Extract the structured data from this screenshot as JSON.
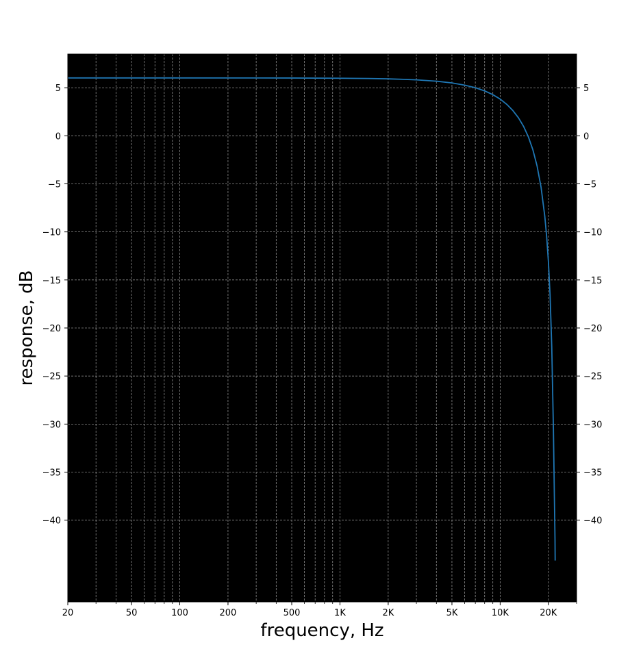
{
  "chart_data": {
    "type": "line",
    "title": "",
    "xlabel": "frequency, Hz",
    "ylabel": "response, dB",
    "xscale": "log",
    "xlim": [
      20,
      30000
    ],
    "ylim": [
      -48.5,
      8.5
    ],
    "grid": true,
    "background_color": "#000000",
    "grid_color": "#8c8c8c",
    "line_color": "#1f77b4",
    "xticks": [
      {
        "value": 20,
        "label": "20"
      },
      {
        "value": 50,
        "label": "50"
      },
      {
        "value": 100,
        "label": "100"
      },
      {
        "value": 200,
        "label": "200"
      },
      {
        "value": 500,
        "label": "500"
      },
      {
        "value": 1000,
        "label": "1K"
      },
      {
        "value": 2000,
        "label": "2K"
      },
      {
        "value": 5000,
        "label": "5K"
      },
      {
        "value": 10000,
        "label": "10K"
      },
      {
        "value": 20000,
        "label": "20K"
      }
    ],
    "yticks": [
      {
        "value": 5,
        "label": "5"
      },
      {
        "value": 0,
        "label": "0"
      },
      {
        "value": -5,
        "label": "−5"
      },
      {
        "value": -10,
        "label": "−10"
      },
      {
        "value": -15,
        "label": "−15"
      },
      {
        "value": -20,
        "label": "−20"
      },
      {
        "value": -25,
        "label": "−25"
      },
      {
        "value": -30,
        "label": "−30"
      },
      {
        "value": -35,
        "label": "−35"
      },
      {
        "value": -40,
        "label": "−40"
      }
    ],
    "series": [
      {
        "x": [
          20,
          100,
          500,
          1000,
          1500,
          2000,
          2500,
          3000,
          4000,
          5000,
          6000,
          7000,
          8000,
          9000,
          10000,
          11000,
          12000,
          13000,
          14000,
          15000,
          16000,
          17000,
          18000,
          19000,
          19500,
          20000,
          20500,
          21000,
          21500,
          21800,
          22000,
          22050
        ],
        "y": [
          6.02,
          6.02,
          6.01,
          5.99,
          5.96,
          5.92,
          5.87,
          5.82,
          5.68,
          5.5,
          5.27,
          5.0,
          4.67,
          4.28,
          3.82,
          3.27,
          2.63,
          1.88,
          0.98,
          -0.11,
          -1.45,
          -3.14,
          -5.34,
          -8.39,
          -10.44,
          -13.05,
          -16.6,
          -22.0,
          -30.5,
          -37.5,
          -42.0,
          -44.2
        ]
      }
    ]
  }
}
